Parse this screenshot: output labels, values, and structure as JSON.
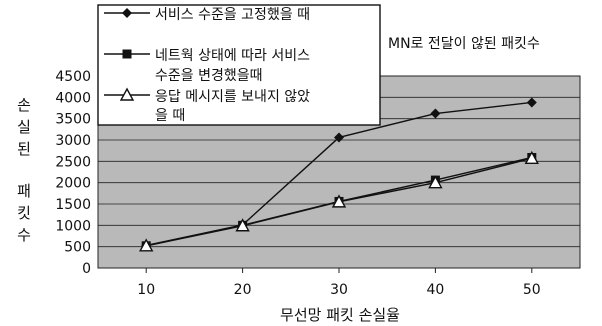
{
  "chart_data": {
    "type": "line",
    "title": "MN로 전달이 않된 패킷수",
    "xlabel": "무선망 패킷 손실율",
    "ylabel": [
      "손",
      "실",
      "된",
      "패",
      "킷",
      "수"
    ],
    "x": [
      10,
      20,
      30,
      40,
      50
    ],
    "ylim": [
      0,
      4500
    ],
    "yticks": [
      0,
      500,
      1000,
      1500,
      2000,
      2500,
      3000,
      3500,
      4000,
      4500
    ],
    "grid": true,
    "legend_position": "top-left",
    "series": [
      {
        "name": "서비스 수준을 고정했을 때",
        "legend_lines": [
          "서비스 수준을 고정했을 때"
        ],
        "marker": "diamond",
        "values": [
          530,
          1010,
          3060,
          3620,
          3880
        ]
      },
      {
        "name": "네트웍 상태에 따라 서비스 수준을 변경했을때",
        "legend_lines": [
          "네트웍 상태에 따라 서비스",
          "수준을 변경했을때"
        ],
        "marker": "square",
        "values": [
          520,
          1000,
          1560,
          2060,
          2590
        ]
      },
      {
        "name": "응답 메시지를 보내지 않았을 때",
        "legend_lines": [
          "응답 메시지를 보내지 않았",
          "을 때"
        ],
        "marker": "triangle",
        "values": [
          520,
          990,
          1550,
          2000,
          2570
        ]
      }
    ]
  }
}
